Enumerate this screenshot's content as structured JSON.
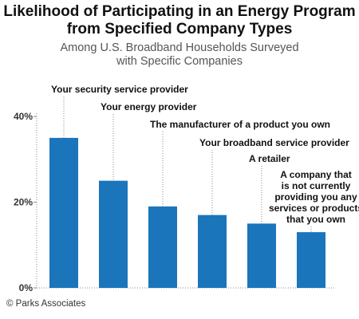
{
  "header": {
    "title_line1": "Likelihood of Participating in an Energy Program",
    "title_line2": "from Specified Company Types",
    "subtitle_line1": "Among U.S. Broadband Households Surveyed",
    "subtitle_line2": "with Specific Companies"
  },
  "footer": {
    "credit": "© Parks Associates"
  },
  "chart_data": {
    "type": "bar",
    "title": "Likelihood of Participating in an Energy Program from Specified Company Types",
    "subtitle": "Among U.S. Broadband Households Surveyed with Specific Companies",
    "categories": [
      [
        "Your security service provider"
      ],
      [
        "Your energy provider"
      ],
      [
        "The manufacturer of a product you own"
      ],
      [
        "Your broadband service provider"
      ],
      [
        "A retailer"
      ],
      [
        "A company that",
        "is not currently",
        "providing you any",
        "services or products",
        "that you own"
      ]
    ],
    "values": [
      35,
      25,
      19,
      17,
      15,
      13
    ],
    "ylim": [
      0,
      40
    ],
    "yticks": [
      0,
      20,
      40
    ],
    "ytick_labels": [
      "0%",
      "20%",
      "40%"
    ],
    "unit": "%",
    "xlabel": "",
    "ylabel": "",
    "grid": false,
    "colors": {
      "bar": "#1b75bb",
      "leader": "#888888",
      "axis": "#888888"
    }
  }
}
